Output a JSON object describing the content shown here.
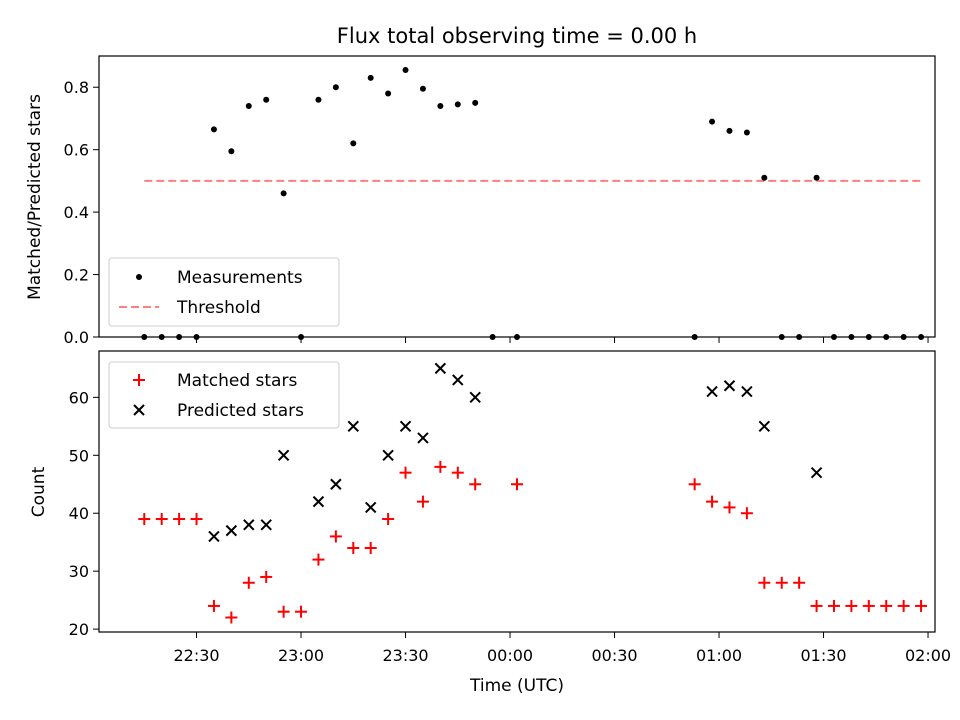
{
  "chart_data": [
    {
      "type": "scatter",
      "title": "Flux total observing time = 0.00 h",
      "xlabel": "",
      "ylabel": "Matched/Predicted stars",
      "ylim": [
        0,
        0.9
      ],
      "yticks": [
        "0.0",
        "0.2",
        "0.4",
        "0.6",
        "0.8"
      ],
      "legend": "bottom-left",
      "colors": {
        "measurements": "#000000",
        "threshold": "#ff7f7f"
      },
      "threshold": {
        "name": "Threshold",
        "value": 0.5,
        "x_start": "22:15",
        "x_end": "01:58"
      },
      "series": [
        {
          "name": "Measurements",
          "x": [
            "22:15",
            "22:20",
            "22:25",
            "22:30",
            "22:35",
            "22:40",
            "22:45",
            "22:50",
            "22:55",
            "23:00",
            "23:05",
            "23:10",
            "23:15",
            "23:20",
            "23:25",
            "23:30",
            "23:35",
            "23:40",
            "23:45",
            "23:50",
            "23:55",
            "00:02",
            "00:53",
            "00:58",
            "01:03",
            "01:08",
            "01:13",
            "01:18",
            "01:23",
            "01:28",
            "01:33",
            "01:38",
            "01:43",
            "01:48",
            "01:53",
            "01:58"
          ],
          "y": [
            0,
            0,
            0,
            0,
            0.665,
            0.595,
            0.74,
            0.76,
            0.46,
            0,
            0.76,
            0.8,
            0.62,
            0.83,
            0.78,
            0.855,
            0.795,
            0.74,
            0.745,
            0.75,
            0,
            0,
            0,
            0.69,
            0.66,
            0.655,
            0.51,
            0,
            0,
            0.51,
            0,
            0,
            0,
            0,
            0,
            0
          ]
        }
      ]
    },
    {
      "type": "scatter",
      "xlabel": "Time (UTC)",
      "ylabel": "Count",
      "ylim": [
        19.5,
        68
      ],
      "yticks": [
        "20",
        "30",
        "40",
        "50",
        "60"
      ],
      "xticks": [
        "22:30",
        "23:00",
        "23:30",
        "00:00",
        "00:30",
        "01:00",
        "01:30",
        "02:00"
      ],
      "legend": "top-left",
      "colors": {
        "matched": "#ff0000",
        "predicted": "#000000"
      },
      "series": [
        {
          "name": "Matched stars",
          "x": [
            "22:15",
            "22:20",
            "22:25",
            "22:30",
            "22:35",
            "22:40",
            "22:45",
            "22:50",
            "22:55",
            "23:00",
            "23:05",
            "23:10",
            "23:15",
            "23:20",
            "23:25",
            "23:30",
            "23:35",
            "23:40",
            "23:45",
            "23:50",
            "00:02",
            "00:53",
            "00:58",
            "01:03",
            "01:08",
            "01:13",
            "01:18",
            "01:23",
            "01:28",
            "01:33",
            "01:38",
            "01:43",
            "01:48",
            "01:53",
            "01:58"
          ],
          "y": [
            39,
            39,
            39,
            39,
            24,
            22,
            28,
            29,
            23,
            23,
            32,
            36,
            34,
            34,
            39,
            47,
            42,
            48,
            47,
            45,
            45,
            45,
            42,
            41,
            40,
            28,
            28,
            28,
            24,
            24,
            24,
            24,
            24,
            24,
            24
          ]
        },
        {
          "name": "Predicted stars",
          "x": [
            "22:35",
            "22:40",
            "22:45",
            "22:50",
            "22:55",
            "23:05",
            "23:10",
            "23:15",
            "23:20",
            "23:25",
            "23:30",
            "23:35",
            "23:40",
            "23:45",
            "23:50",
            "00:58",
            "01:03",
            "01:08",
            "01:13",
            "01:28"
          ],
          "y": [
            36,
            37,
            38,
            38,
            50,
            42,
            45,
            55,
            41,
            50,
            55,
            53,
            65,
            63,
            60,
            61,
            62,
            61,
            55,
            47
          ]
        }
      ]
    }
  ]
}
